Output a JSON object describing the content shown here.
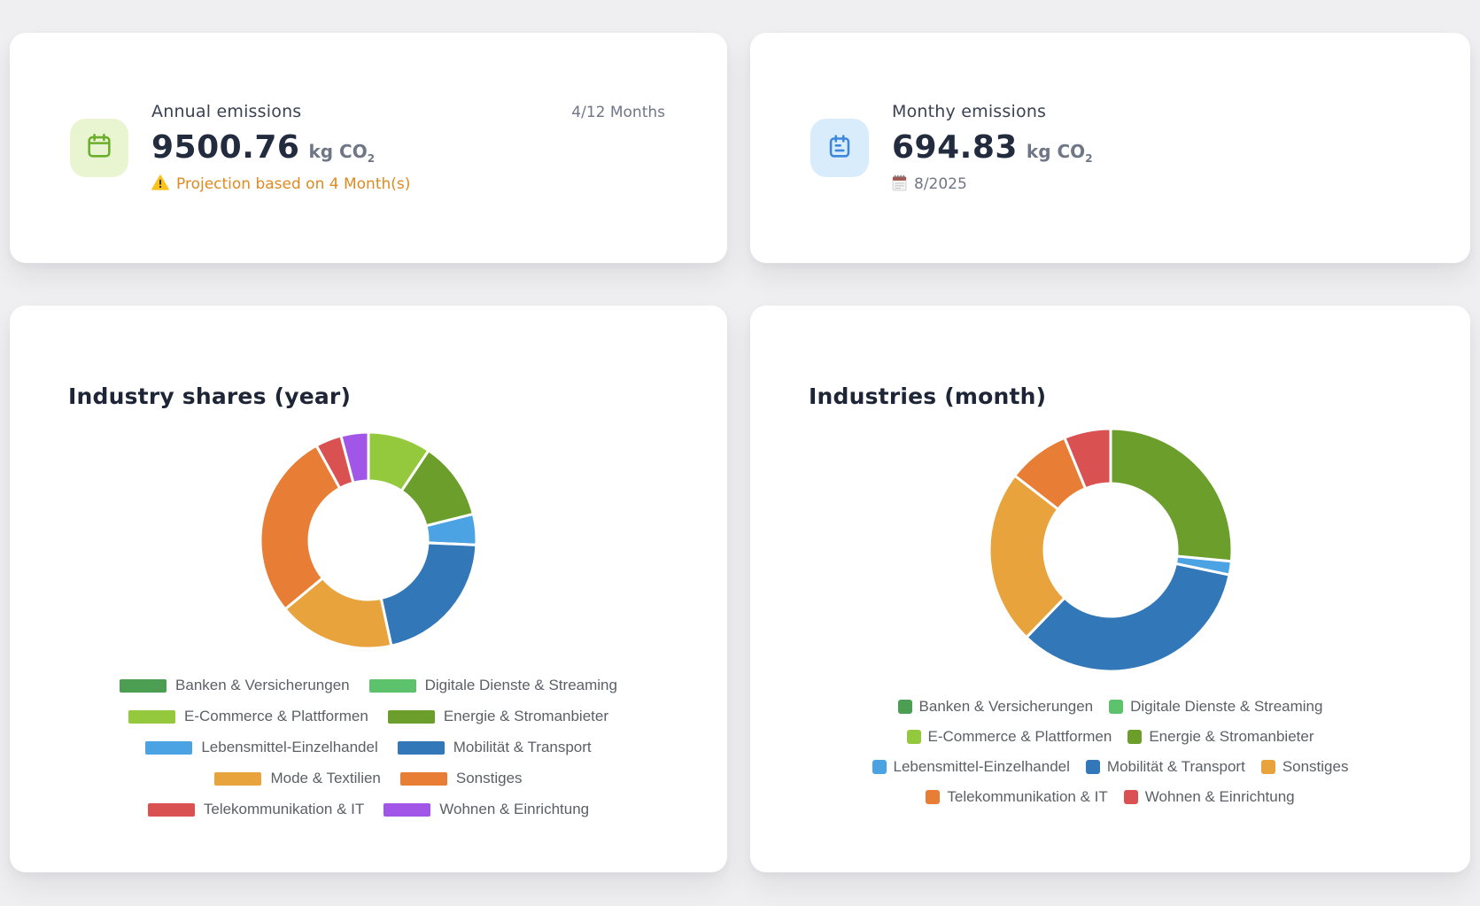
{
  "stat_cards": {
    "annual": {
      "title": "Annual emissions",
      "value": "9500.76",
      "unit": "kg CO",
      "unit_subscript": "2",
      "warning_text": "Projection based on 4 Month(s)",
      "months_badge": "4/12 Months",
      "icon": "calendar-icon",
      "icon_bg": "#e9f5d0",
      "icon_color": "#6cae2c"
    },
    "monthly": {
      "title": "Monthy emissions",
      "value": "694.83",
      "unit": "kg CO",
      "unit_subscript": "2",
      "period": "8/2025",
      "icon": "calendar-lines-icon",
      "icon_bg": "#d9ecfb",
      "icon_color": "#3c87dd"
    }
  },
  "chart_data": [
    {
      "type": "pie",
      "variant": "donut",
      "title": "Industry shares (year)",
      "legend_position": "bottom",
      "labels": [
        "Banken & Versicherungen",
        "Digitale Dienste & Streaming",
        "E-Commerce & Plattformen",
        "Energie & Stromanbieter",
        "Lebensmittel-Einzelhandel",
        "Mobilität & Transport",
        "Mode & Textilien",
        "Sonstiges",
        "Telekommunikation & IT",
        "Wohnen & Einrichtung"
      ],
      "values_percent": [
        0,
        0,
        9.4,
        11.7,
        4.6,
        20.9,
        17.4,
        28.0,
        3.9,
        4.1
      ],
      "colors": [
        "#4c9e52",
        "#5cc26c",
        "#95c93d",
        "#6c9e2c",
        "#4ba3e3",
        "#3277b8",
        "#e8a33c",
        "#e87e35",
        "#d95151",
        "#a156e8"
      ],
      "start_angle_deg": 0,
      "direction": "clockwise"
    },
    {
      "type": "pie",
      "variant": "donut",
      "title": "Industries (month)",
      "legend_position": "bottom",
      "labels": [
        "Banken & Versicherungen",
        "Digitale Dienste & Streaming",
        "E-Commerce & Plattformen",
        "Energie & Stromanbieter",
        "Lebensmittel-Einzelhandel",
        "Mobilität & Transport",
        "Sonstiges",
        "Telekommunikation & IT",
        "Wohnen & Einrichtung"
      ],
      "values_percent": [
        0,
        0,
        0,
        26.5,
        1.8,
        33.9,
        23.3,
        8.3,
        6.2
      ],
      "colors": [
        "#4c9e52",
        "#5cc26c",
        "#95c93d",
        "#6c9e2c",
        "#4ba3e3",
        "#3277b8",
        "#e8a33c",
        "#e87e35",
        "#d95151"
      ],
      "start_angle_deg": 0,
      "direction": "clockwise"
    }
  ]
}
